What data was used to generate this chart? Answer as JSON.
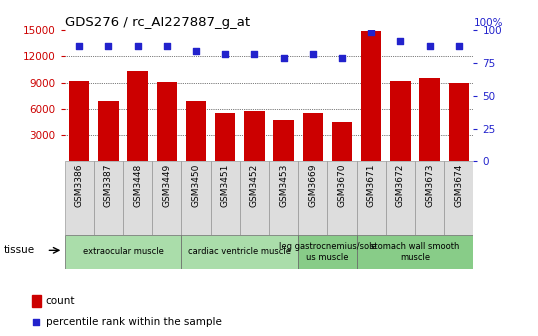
{
  "title": "GDS276 / rc_AI227887_g_at",
  "samples": [
    "GSM3386",
    "GSM3387",
    "GSM3448",
    "GSM3449",
    "GSM3450",
    "GSM3451",
    "GSM3452",
    "GSM3453",
    "GSM3669",
    "GSM3670",
    "GSM3671",
    "GSM3672",
    "GSM3673",
    "GSM3674"
  ],
  "counts": [
    9200,
    6900,
    10300,
    9100,
    6900,
    5500,
    5800,
    4700,
    5500,
    4500,
    14900,
    9200,
    9500,
    9000
  ],
  "percentiles": [
    88,
    88,
    88,
    88,
    84,
    82,
    82,
    79,
    82,
    79,
    99,
    92,
    88,
    88
  ],
  "bar_color": "#cc0000",
  "dot_color": "#2222cc",
  "ylim_left": [
    0,
    15000
  ],
  "ylim_right": [
    0,
    100
  ],
  "yticks_left": [
    3000,
    6000,
    9000,
    12000,
    15000
  ],
  "yticks_right": [
    0,
    25,
    50,
    75,
    100
  ],
  "groups": [
    {
      "label": "extraocular muscle",
      "start": 0,
      "end": 3,
      "color": "#aaddaa"
    },
    {
      "label": "cardiac ventricle muscle",
      "start": 4,
      "end": 7,
      "color": "#aaddaa"
    },
    {
      "label": "leg gastrocnemius/sole\nus muscle",
      "start": 8,
      "end": 9,
      "color": "#88cc88"
    },
    {
      "label": "stomach wall smooth\nmuscle",
      "start": 10,
      "end": 13,
      "color": "#88cc88"
    }
  ],
  "legend_count_label": "count",
  "legend_pct_label": "percentile rank within the sample",
  "tissue_label": "tissue",
  "bar_color_legend": "#cc0000",
  "dot_color_legend": "#2222cc",
  "tick_color_left": "#cc0000",
  "tick_color_right": "#2222cc",
  "title_color": "#000000",
  "grid_color": "#000000",
  "right_axis_top_label": "100%"
}
